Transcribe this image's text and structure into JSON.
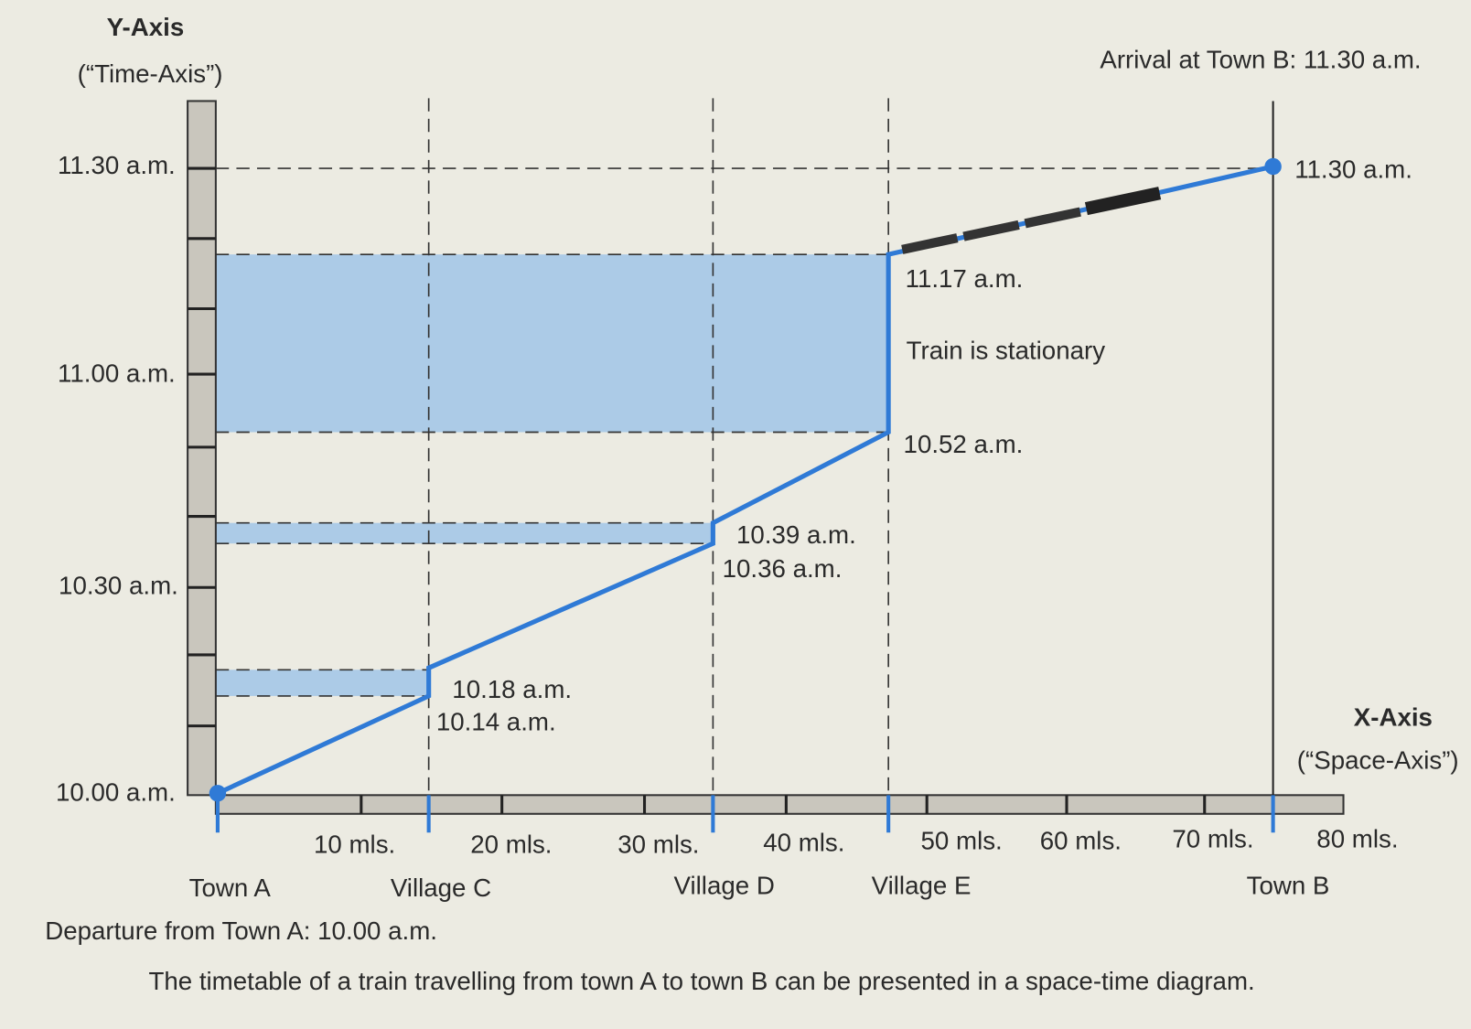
{
  "y_axis": {
    "title": "Y-Axis",
    "subtitle": "(“Time-Axis”)",
    "labels": [
      "11.30 a.m.",
      "11.00 a.m.",
      "10.30 a.m.",
      "10.00 a.m."
    ]
  },
  "x_axis": {
    "title": "X-Axis",
    "subtitle": "(“Space-Axis”)",
    "distances": [
      "10 mls.",
      "20 mls.",
      "30 mls.",
      "40 mls.",
      "50 mls.",
      "60 mls.",
      "70 mls.",
      "80 mls."
    ],
    "places": [
      "Town A",
      "Village C",
      "Village D",
      "Village E",
      "Town B"
    ]
  },
  "arrival": "Arrival at Town B: 11.30 a.m.",
  "departure": "Departure from Town A: 10.00 a.m.",
  "point_labels": [
    "11.30 a.m.",
    "11.17 a.m.",
    "10.52 a.m.",
    "10.39 a.m.",
    "10.36 a.m.",
    "10.18 a.m.",
    "10.14 a.m."
  ],
  "stationary_note": "Train is stationary",
  "caption": "The timetable of a train travelling from town A to town B can be presented in a space-time diagram."
}
